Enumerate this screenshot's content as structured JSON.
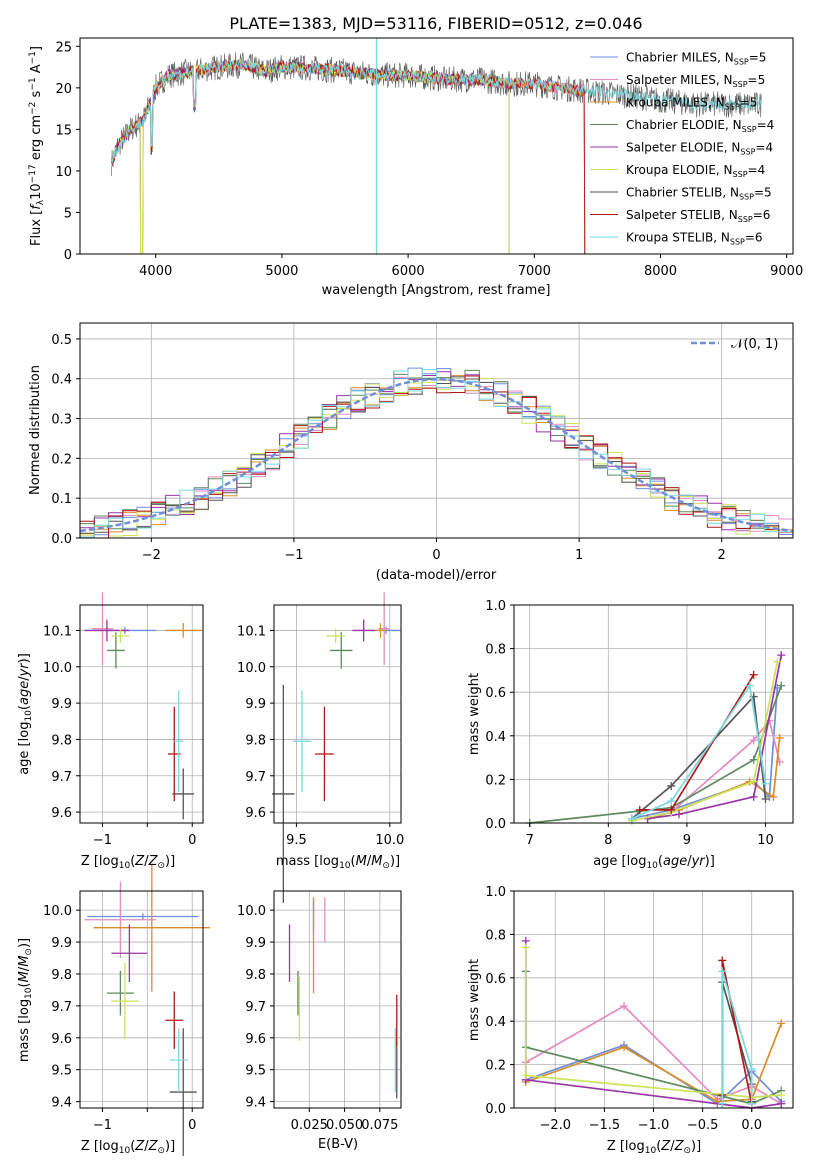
{
  "figure_title": "PLATE=1383, MJD=53116, FIBERID=0512, z=0.046",
  "colors": {
    "Chabrier MILES": "#6f8fdc",
    "Salpeter MILES": "#e48bc0",
    "Kroupa MILES": "#d98c2a",
    "Chabrier ELODIE": "#5e8a5e",
    "Salpeter ELODIE": "#9a34a8",
    "Kroupa ELODIE": "#cde35a",
    "Chabrier STELIB": "#555555",
    "Salpeter STELIB": "#b01818",
    "Kroupa STELIB": "#7ad8e0"
  },
  "chart_data": [
    {
      "id": "spectrum",
      "type": "line",
      "title": "PLATE=1383, MJD=53116, FIBERID=0512, z=0.046",
      "xlabel": "wavelength [Angstrom, rest frame]",
      "ylabel": "Flux [f_λ 10^-17 erg cm^-2 s^-1 A^-1]",
      "xlim": [
        3400,
        9050
      ],
      "ylim": [
        0,
        26
      ],
      "xticks": [
        "4000",
        "5000",
        "6000",
        "7000",
        "8000",
        "9000"
      ],
      "yticks": [
        "0",
        "5",
        "10",
        "15",
        "20",
        "25"
      ],
      "grid": false,
      "legend": "top-right",
      "data_x": [
        3650,
        3700,
        3800,
        3900,
        4000,
        4100,
        4300,
        4500,
        4700,
        4860,
        5000,
        5200,
        5500,
        5800,
        6000,
        6300,
        6560,
        6800,
        7000,
        7200,
        7500,
        7800,
        8000,
        8300,
        8600,
        8800
      ],
      "data_y": [
        11,
        13,
        15,
        16,
        20,
        21.5,
        22,
        22.5,
        22.8,
        22,
        22.5,
        22.4,
        22,
        21.5,
        21.5,
        21,
        21,
        20.5,
        20.5,
        20,
        19.5,
        19,
        18.5,
        18,
        18,
        18
      ],
      "models": [
        {
          "name": "Chabrier MILES",
          "nssp": "5"
        },
        {
          "name": "Salpeter MILES",
          "nssp": "5"
        },
        {
          "name": "Kroupa MILES",
          "nssp": "5"
        },
        {
          "name": "Chabrier ELODIE",
          "nssp": "4"
        },
        {
          "name": "Salpeter ELODIE",
          "nssp": "4"
        },
        {
          "name": "Kroupa ELODIE",
          "nssp": "4"
        },
        {
          "name": "Chabrier STELIB",
          "nssp": "5"
        },
        {
          "name": "Salpeter STELIB",
          "nssp": "6"
        },
        {
          "name": "Kroupa STELIB",
          "nssp": "6"
        }
      ]
    },
    {
      "id": "residuals",
      "type": "line",
      "xlabel": "(data-model)/error",
      "ylabel": "Normed distribution",
      "xlim": [
        -2.5,
        2.5
      ],
      "ylim": [
        0,
        0.54
      ],
      "xticks": [
        -2,
        -1,
        0,
        1,
        2
      ],
      "yticks": [
        0.0,
        0.1,
        0.2,
        0.3,
        0.4,
        0.5
      ],
      "grid": true,
      "legend": "top-right",
      "legend_label": "𝒩(0, 1)",
      "curve": "normal pdf, mean 0, sigma 1",
      "histogram_bin_width": 0.1
    },
    {
      "id": "age_vs_Z",
      "type": "scatter",
      "xlabel": "Z [log10(Z/Z⊙)]",
      "ylabel": "age [log10(age/yr)]",
      "xlim": [
        -1.25,
        0.12
      ],
      "ylim": [
        9.57,
        10.17
      ],
      "xticks": [
        -1,
        -0.5,
        0
      ],
      "xticklabels": [
        "−1",
        "",
        "0"
      ],
      "yticks": [
        9.6,
        9.7,
        9.8,
        9.9,
        10.0,
        10.1
      ],
      "grid": true,
      "points": [
        {
          "model": "Chabrier MILES",
          "x": -0.75,
          "y": 10.1,
          "dx": 0.35,
          "dy": 0.01
        },
        {
          "model": "Salpeter MILES",
          "x": -1.0,
          "y": 10.105,
          "dx": 0.12,
          "dy": 0.1
        },
        {
          "model": "Kroupa MILES",
          "x": -0.1,
          "y": 10.1,
          "dx": 0.2,
          "dy": 0.02
        },
        {
          "model": "Chabrier ELODIE",
          "x": -0.85,
          "y": 10.045,
          "dx": 0.1,
          "dy": 0.05
        },
        {
          "model": "Salpeter ELODIE",
          "x": -0.95,
          "y": 10.1,
          "dx": 0.25,
          "dy": 0.03
        },
        {
          "model": "Kroupa ELODIE",
          "x": -0.8,
          "y": 10.085,
          "dx": 0.1,
          "dy": 0.02
        },
        {
          "model": "Chabrier STELIB",
          "x": -0.1,
          "y": 9.65,
          "dx": 0.12,
          "dy": 0.07
        },
        {
          "model": "Salpeter STELIB",
          "x": -0.2,
          "y": 9.76,
          "dx": 0.07,
          "dy": 0.13
        },
        {
          "model": "Kroupa STELIB",
          "x": -0.15,
          "y": 9.795,
          "dx": 0.05,
          "dy": 0.14
        }
      ]
    },
    {
      "id": "age_vs_mass",
      "type": "scatter",
      "xlabel": "mass [log10(M/M⊙)]",
      "ylabel": "",
      "xlim": [
        9.38,
        10.06
      ],
      "ylim": [
        9.57,
        10.17
      ],
      "xticks": [
        9.5,
        10.0
      ],
      "yticks": [
        9.6,
        9.7,
        9.8,
        9.9,
        10.0,
        10.1
      ],
      "grid": true,
      "points": [
        {
          "model": "Chabrier MILES",
          "x": 9.98,
          "y": 10.1,
          "dx": 0.08,
          "dy": 0.01
        },
        {
          "model": "Salpeter MILES",
          "x": 9.97,
          "y": 10.105,
          "dx": 0.03,
          "dy": 0.1
        },
        {
          "model": "Kroupa MILES",
          "x": 9.95,
          "y": 10.1,
          "dx": 0.03,
          "dy": 0.02
        },
        {
          "model": "Chabrier ELODIE",
          "x": 9.74,
          "y": 10.045,
          "dx": 0.06,
          "dy": 0.05
        },
        {
          "model": "Salpeter ELODIE",
          "x": 9.86,
          "y": 10.1,
          "dx": 0.06,
          "dy": 0.03
        },
        {
          "model": "Kroupa ELODIE",
          "x": 9.71,
          "y": 10.085,
          "dx": 0.05,
          "dy": 0.02
        },
        {
          "model": "Chabrier STELIB",
          "x": 9.43,
          "y": 9.65,
          "dx": 0.06,
          "dy": 0.3
        },
        {
          "model": "Salpeter STELIB",
          "x": 9.65,
          "y": 9.76,
          "dx": 0.05,
          "dy": 0.13
        },
        {
          "model": "Kroupa STELIB",
          "x": 9.53,
          "y": 9.795,
          "dx": 0.05,
          "dy": 0.14
        }
      ]
    },
    {
      "id": "weight_vs_age",
      "type": "line",
      "xlabel": "age [log10(age/yr)]",
      "ylabel": "mass weight",
      "xlim": [
        6.8,
        10.35
      ],
      "ylim": [
        0,
        1.0
      ],
      "xticks": [
        7,
        8,
        9,
        10
      ],
      "yticks": [
        0.0,
        0.2,
        0.4,
        0.6,
        0.8,
        1.0
      ],
      "grid": true,
      "series": [
        {
          "name": "Chabrier MILES",
          "x": [
            8.3,
            8.8,
            9.85,
            10.05,
            10.15
          ],
          "y": [
            0.02,
            0.06,
            0.19,
            0.12,
            0.62
          ]
        },
        {
          "name": "Salpeter MILES",
          "x": [
            8.5,
            8.8,
            9.85,
            10.05,
            10.18
          ],
          "y": [
            0.02,
            0.05,
            0.38,
            0.47,
            0.28
          ]
        },
        {
          "name": "Kroupa MILES",
          "x": [
            8.5,
            8.9,
            9.8,
            10.1,
            10.18
          ],
          "y": [
            0.02,
            0.06,
            0.19,
            0.12,
            0.39
          ]
        },
        {
          "name": "Chabrier ELODIE",
          "x": [
            7.0,
            8.8,
            9.85,
            10.2
          ],
          "y": [
            0.0,
            0.07,
            0.29,
            0.63
          ]
        },
        {
          "name": "Salpeter ELODIE",
          "x": [
            8.5,
            8.9,
            9.85,
            10.2
          ],
          "y": [
            0.02,
            0.04,
            0.12,
            0.77
          ]
        },
        {
          "name": "Kroupa ELODIE",
          "x": [
            8.3,
            8.8,
            9.85,
            10.15
          ],
          "y": [
            0.01,
            0.05,
            0.19,
            0.74
          ]
        },
        {
          "name": "Chabrier STELIB",
          "x": [
            8.3,
            8.8,
            9.85,
            10.0
          ],
          "y": [
            0.02,
            0.17,
            0.58,
            0.11
          ]
        },
        {
          "name": "Salpeter STELIB",
          "x": [
            8.4,
            8.8,
            9.85
          ],
          "y": [
            0.06,
            0.06,
            0.68
          ]
        },
        {
          "name": "Kroupa STELIB",
          "x": [
            8.3,
            8.8,
            9.8,
            10.0
          ],
          "y": [
            0.02,
            0.1,
            0.63,
            0.18
          ]
        }
      ]
    },
    {
      "id": "mass_vs_Z",
      "type": "scatter",
      "xlabel": "Z [log10(Z/Z⊙)]",
      "ylabel": "mass [log10(M/M⊙)]",
      "xlim": [
        -1.25,
        0.12
      ],
      "ylim": [
        9.38,
        10.06
      ],
      "xticks": [
        -1,
        -0.5,
        0
      ],
      "xticklabels": [
        "−1",
        "",
        "0"
      ],
      "yticks": [
        9.4,
        9.5,
        9.6,
        9.7,
        9.8,
        9.9,
        10.0
      ],
      "grid": true,
      "points": [
        {
          "model": "Chabrier MILES",
          "x": -0.55,
          "y": 9.98,
          "dx": 0.62,
          "dy": 0.01
        },
        {
          "model": "Salpeter MILES",
          "x": -0.8,
          "y": 9.97,
          "dx": 0.4,
          "dy": 0.12
        },
        {
          "model": "Kroupa MILES",
          "x": -0.45,
          "y": 9.945,
          "dx": 0.65,
          "dy": 0.2
        },
        {
          "model": "Chabrier ELODIE",
          "x": -0.8,
          "y": 9.74,
          "dx": 0.15,
          "dy": 0.07
        },
        {
          "model": "Salpeter ELODIE",
          "x": -0.7,
          "y": 9.865,
          "dx": 0.2,
          "dy": 0.09
        },
        {
          "model": "Kroupa ELODIE",
          "x": -0.75,
          "y": 9.715,
          "dx": 0.15,
          "dy": 0.12
        },
        {
          "model": "Chabrier STELIB",
          "x": -0.1,
          "y": 9.43,
          "dx": 0.15,
          "dy": 0.2
        },
        {
          "model": "Salpeter STELIB",
          "x": -0.2,
          "y": 9.655,
          "dx": 0.1,
          "dy": 0.09
        },
        {
          "model": "Kroupa STELIB",
          "x": -0.15,
          "y": 9.53,
          "dx": 0.1,
          "dy": 0.1
        }
      ]
    },
    {
      "id": "mass_vs_EBV",
      "type": "scatter",
      "xlabel": "E(B-V)",
      "ylabel": "",
      "xlim": [
        0.0,
        0.09
      ],
      "ylim": [
        9.38,
        10.06
      ],
      "xticks": [
        0.025,
        0.05,
        0.075
      ],
      "xticklabels": [
        "0.025",
        "0.050",
        "0.075"
      ],
      "yticks": [
        9.4,
        9.5,
        9.6,
        9.7,
        9.8,
        9.9,
        10.0
      ],
      "grid": true,
      "points": [
        {
          "model": "Chabrier MILES",
          "x": 0.028,
          "y": 9.98,
          "dy": 0.05
        },
        {
          "model": "Salpeter MILES",
          "x": 0.036,
          "y": 9.97,
          "dy": 0.07
        },
        {
          "model": "Kroupa MILES",
          "x": 0.028,
          "y": 9.89,
          "dy": 0.15
        },
        {
          "model": "Chabrier ELODIE",
          "x": 0.017,
          "y": 9.74,
          "dy": 0.07
        },
        {
          "model": "Salpeter ELODIE",
          "x": 0.011,
          "y": 9.865,
          "dy": 0.09
        },
        {
          "model": "Kroupa ELODIE",
          "x": 0.018,
          "y": 9.69,
          "dy": 0.1
        },
        {
          "model": "Chabrier STELIB",
          "x": 0.087,
          "y": 9.5,
          "dy": 0.09
        },
        {
          "model": "Salpeter STELIB",
          "x": 0.087,
          "y": 9.655,
          "dy": 0.08
        },
        {
          "model": "Kroupa STELIB",
          "x": 0.086,
          "y": 9.53,
          "dy": 0.1
        }
      ]
    },
    {
      "id": "weight_vs_Z",
      "type": "line",
      "xlabel": "Z [log10(Z/Z⊙)]",
      "ylabel": "mass weight",
      "xlim": [
        -2.42,
        0.42
      ],
      "ylim": [
        0,
        1.0
      ],
      "xticks": [
        -2.0,
        -1.5,
        -1.0,
        -0.5,
        0.0
      ],
      "xticklabels": [
        "−2.0",
        "−1.5",
        "−1.0",
        "−0.5",
        "0.0"
      ],
      "yticks": [
        0.0,
        0.2,
        0.4,
        0.6,
        0.8,
        1.0
      ],
      "grid": true,
      "series": [
        {
          "name": "Chabrier MILES",
          "x": [
            -2.3,
            -1.3,
            -0.35,
            0.0,
            0.3
          ],
          "y": [
            0.13,
            0.29,
            0.02,
            0.17,
            0.03
          ]
        },
        {
          "name": "Salpeter MILES",
          "x": [
            -2.3,
            -1.3,
            -0.35,
            0.0,
            0.3
          ],
          "y": [
            0.21,
            0.47,
            0.04,
            0.1,
            0.02
          ]
        },
        {
          "name": "Kroupa MILES",
          "x": [
            -2.3,
            -1.3,
            -0.35,
            0.0,
            0.3
          ],
          "y": [
            0.12,
            0.28,
            0.03,
            0.04,
            0.39
          ]
        },
        {
          "name": "Chabrier ELODIE",
          "x": [
            -2.3,
            -2.3,
            0.0,
            0.3
          ],
          "y": [
            0.63,
            0.28,
            0.02,
            0.08
          ]
        },
        {
          "name": "Salpeter ELODIE",
          "x": [
            -2.3,
            -2.3,
            0.0,
            0.3
          ],
          "y": [
            0.77,
            0.13,
            0.0,
            0.02
          ]
        },
        {
          "name": "Kroupa ELODIE",
          "x": [
            -2.3,
            -2.3,
            0.0,
            0.3
          ],
          "y": [
            0.74,
            0.15,
            0.05,
            0.06
          ]
        },
        {
          "name": "Chabrier STELIB",
          "x": [
            -0.3,
            -0.3,
            0.0,
            0.0
          ],
          "y": [
            0.02,
            0.58,
            0.11,
            0.03
          ]
        },
        {
          "name": "Salpeter STELIB",
          "x": [
            -0.3,
            -0.3,
            0.0
          ],
          "y": [
            0.06,
            0.68,
            0.02
          ]
        },
        {
          "name": "Kroupa STELIB",
          "x": [
            -0.3,
            -0.3,
            0.0,
            0.0
          ],
          "y": [
            0.02,
            0.63,
            0.18,
            0.02
          ]
        }
      ]
    }
  ]
}
